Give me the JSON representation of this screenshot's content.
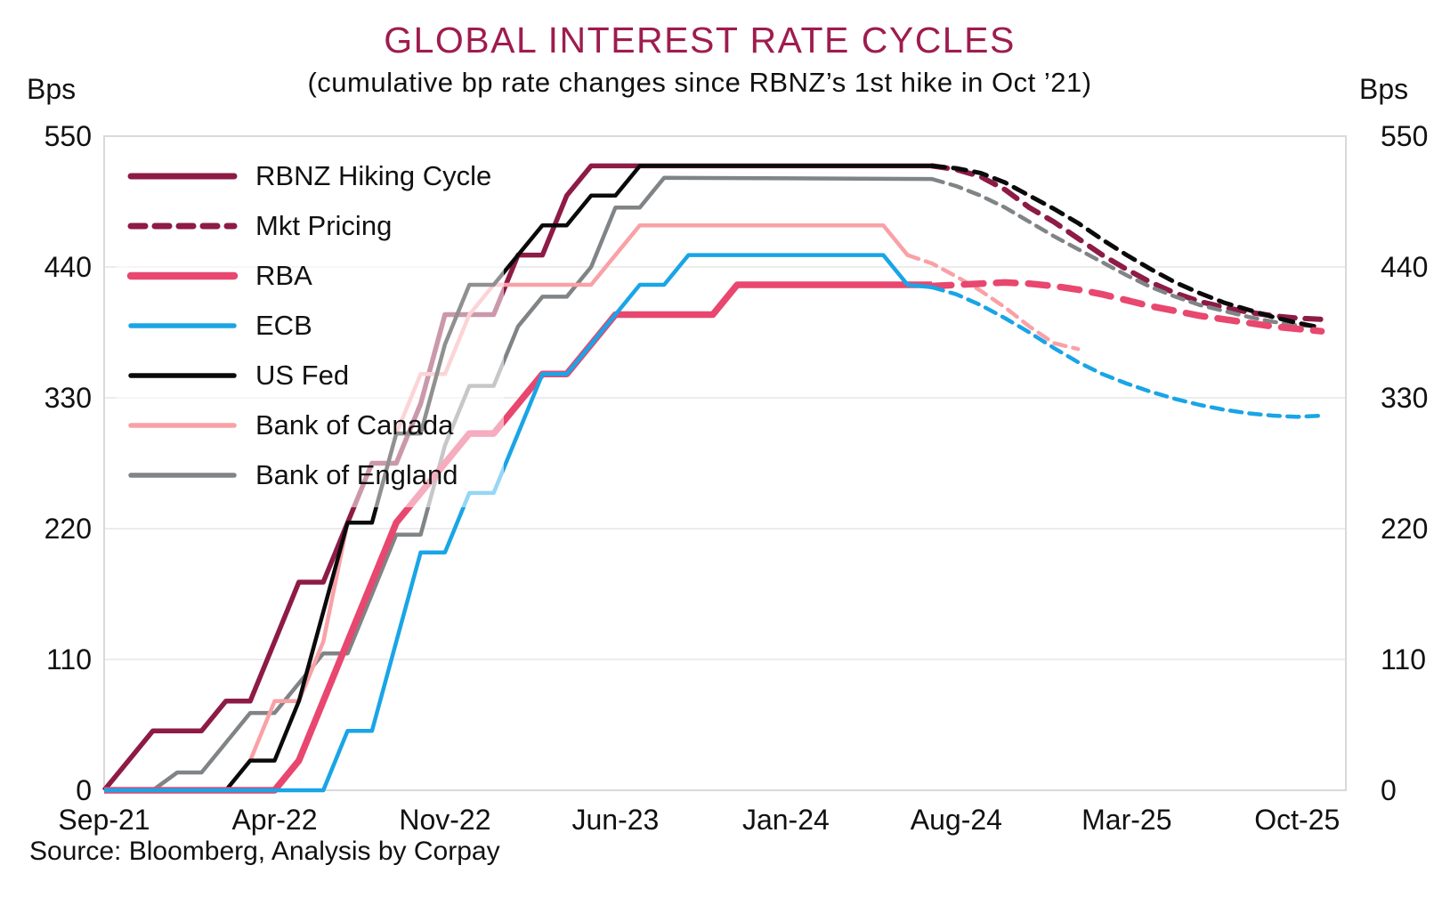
{
  "header": {
    "title": "GLOBAL INTEREST RATE CYCLES",
    "subtitle": "(cumulative bp rate changes since RBNZ’s 1st hike in Oct ’21)",
    "title_color": "#9E1C4E"
  },
  "axes": {
    "left_unit": "Bps",
    "right_unit": "Bps"
  },
  "source_note": "Source: Bloomberg, Analysis by Corpay",
  "colors": {
    "rbnz_maroon": "#8D1B46",
    "rba_pink": "#E8476F",
    "ecb_blue": "#19A5E6",
    "fed_black": "#0A0A0A",
    "boc_salmon": "#F9A1A6",
    "boe_gray": "#808486",
    "gridline": "#ECECEC",
    "frame": "#D9D9D9"
  },
  "legend": {
    "items": [
      {
        "label": "RBNZ Hiking Cycle",
        "color": "#8D1B46",
        "style": "solid",
        "width": 7
      },
      {
        "label": "Mkt Pricing",
        "color": "#8D1B46",
        "style": "dashed",
        "width": 7
      },
      {
        "label": "RBA",
        "color": "#E8476F",
        "style": "solid",
        "width": 8.5
      },
      {
        "label": "ECB",
        "color": "#19A5E6",
        "style": "solid",
        "width": 5.5
      },
      {
        "label": "US Fed",
        "color": "#0A0A0A",
        "style": "solid",
        "width": 5.5
      },
      {
        "label": "Bank of Canada",
        "color": "#F9A1A6",
        "style": "solid",
        "width": 5.5
      },
      {
        "label": "Bank of England",
        "color": "#808486",
        "style": "solid",
        "width": 5.5
      }
    ]
  },
  "chart_data": {
    "type": "line",
    "title": "GLOBAL INTEREST RATE CYCLES",
    "subtitle": "(cumulative bp rate changes since RBNZ’s 1st hike in Oct ’21)",
    "ylabel": "Bps",
    "ylim": [
      0,
      550
    ],
    "y_ticks": [
      0,
      110,
      220,
      330,
      440,
      550
    ],
    "x_unit": "months since Sep-2021",
    "x_range_months": [
      0,
      51
    ],
    "x_ticks": [
      {
        "label": "Sep-21",
        "m": 0
      },
      {
        "label": "Apr-22",
        "m": 7
      },
      {
        "label": "Nov-22",
        "m": 14
      },
      {
        "label": "Jun-23",
        "m": 21
      },
      {
        "label": "Jan-24",
        "m": 28
      },
      {
        "label": "Aug-24",
        "m": 35
      },
      {
        "label": "Mar-25",
        "m": 42
      },
      {
        "label": "Oct-25",
        "m": 49
      }
    ],
    "grid": "horizontal-only",
    "legend_position": "upper-left-inside",
    "series": [
      {
        "id": "rbnz_actual",
        "name": "RBNZ Hiking Cycle",
        "color": "#8D1B46",
        "style": "solid",
        "width": 5.5,
        "points": [
          [
            0,
            0
          ],
          [
            1,
            25
          ],
          [
            2,
            50
          ],
          [
            4,
            50
          ],
          [
            5,
            75
          ],
          [
            6,
            75
          ],
          [
            7,
            125
          ],
          [
            8,
            175
          ],
          [
            9,
            175
          ],
          [
            10,
            225
          ],
          [
            11,
            275
          ],
          [
            12,
            275
          ],
          [
            13,
            325
          ],
          [
            14,
            400
          ],
          [
            16,
            400
          ],
          [
            17,
            450
          ],
          [
            18,
            450
          ],
          [
            19,
            500
          ],
          [
            20,
            525
          ],
          [
            34,
            525
          ]
        ]
      },
      {
        "id": "rbnz_mkt",
        "name": "RBNZ Mkt Pricing",
        "color": "#8D1B46",
        "style": "dashed",
        "width": 6,
        "points": [
          [
            34,
            525
          ],
          [
            35,
            522
          ],
          [
            36,
            516
          ],
          [
            37,
            505
          ],
          [
            38,
            490
          ],
          [
            39,
            478
          ],
          [
            40,
            464
          ],
          [
            41,
            450
          ],
          [
            42,
            438
          ],
          [
            43,
            427
          ],
          [
            44,
            418
          ],
          [
            45,
            411
          ],
          [
            46,
            406
          ],
          [
            47,
            402
          ],
          [
            48,
            399
          ],
          [
            49,
            397
          ],
          [
            50,
            396
          ]
        ]
      },
      {
        "id": "boe_actual",
        "name": "Bank of England",
        "color": "#808486",
        "style": "solid",
        "width": 4.5,
        "points": [
          [
            0,
            0
          ],
          [
            2,
            0
          ],
          [
            3,
            15
          ],
          [
            4,
            15
          ],
          [
            5,
            40
          ],
          [
            6,
            65
          ],
          [
            7,
            65
          ],
          [
            8,
            90
          ],
          [
            9,
            115
          ],
          [
            10,
            115
          ],
          [
            11,
            165
          ],
          [
            12,
            215
          ],
          [
            13,
            215
          ],
          [
            14,
            290
          ],
          [
            15,
            340
          ],
          [
            16,
            340
          ],
          [
            17,
            390
          ],
          [
            18,
            415
          ],
          [
            19,
            415
          ],
          [
            20,
            440
          ],
          [
            21,
            490
          ],
          [
            22,
            490
          ],
          [
            23,
            515
          ],
          [
            34,
            514
          ]
        ]
      },
      {
        "id": "boe_mkt",
        "name": "Bank of England Mkt Pricing",
        "color": "#808486",
        "style": "dashed",
        "width": 4.5,
        "points": [
          [
            34,
            514
          ],
          [
            35,
            508
          ],
          [
            36,
            500
          ],
          [
            37,
            490
          ],
          [
            38,
            478
          ],
          [
            39,
            466
          ],
          [
            40,
            455
          ],
          [
            41,
            444
          ],
          [
            42,
            433
          ],
          [
            43,
            423
          ],
          [
            44,
            415
          ],
          [
            45,
            408
          ],
          [
            46,
            403
          ],
          [
            47,
            398
          ],
          [
            48,
            394
          ],
          [
            49,
            391
          ],
          [
            50,
            390
          ]
        ]
      },
      {
        "id": "boc_actual",
        "name": "Bank of Canada",
        "color": "#F9A1A6",
        "style": "solid",
        "width": 4.5,
        "points": [
          [
            0,
            0
          ],
          [
            5,
            0
          ],
          [
            6,
            25
          ],
          [
            7,
            75
          ],
          [
            8,
            75
          ],
          [
            9,
            125
          ],
          [
            10,
            225
          ],
          [
            11,
            225
          ],
          [
            12,
            300
          ],
          [
            13,
            350
          ],
          [
            14,
            350
          ],
          [
            15,
            400
          ],
          [
            16,
            425
          ],
          [
            20,
            425
          ],
          [
            21,
            450
          ],
          [
            22,
            475
          ],
          [
            32,
            475
          ],
          [
            33,
            450
          ]
        ]
      },
      {
        "id": "boc_mkt",
        "name": "Bank of Canada Mkt Pricing",
        "color": "#F9A1A6",
        "style": "dashed",
        "width": 4.5,
        "points": [
          [
            33,
            450
          ],
          [
            34,
            443
          ],
          [
            35,
            432
          ],
          [
            36,
            420
          ],
          [
            37,
            406
          ],
          [
            38,
            390
          ],
          [
            39,
            376
          ],
          [
            40,
            371
          ]
        ]
      },
      {
        "id": "fed_actual",
        "name": "US Fed",
        "color": "#0A0A0A",
        "style": "solid",
        "width": 4.5,
        "points": [
          [
            0,
            0
          ],
          [
            5,
            0
          ],
          [
            6,
            25
          ],
          [
            7,
            25
          ],
          [
            8,
            75
          ],
          [
            9,
            150
          ],
          [
            10,
            225
          ],
          [
            11,
            225
          ],
          [
            12,
            300
          ],
          [
            13,
            300
          ],
          [
            14,
            375
          ],
          [
            15,
            425
          ],
          [
            16,
            425
          ],
          [
            17,
            450
          ],
          [
            18,
            475
          ],
          [
            19,
            475
          ],
          [
            20,
            500
          ],
          [
            21,
            500
          ],
          [
            22,
            525
          ],
          [
            34,
            525
          ]
        ]
      },
      {
        "id": "fed_mkt",
        "name": "US Fed Mkt Pricing",
        "color": "#0A0A0A",
        "style": "dashed",
        "width": 5,
        "points": [
          [
            34,
            525
          ],
          [
            35,
            523
          ],
          [
            36,
            519
          ],
          [
            37,
            511
          ],
          [
            38,
            500
          ],
          [
            39,
            489
          ],
          [
            40,
            477
          ],
          [
            41,
            463
          ],
          [
            42,
            450
          ],
          [
            43,
            438
          ],
          [
            44,
            427
          ],
          [
            45,
            418
          ],
          [
            46,
            410
          ],
          [
            47,
            404
          ],
          [
            48,
            398
          ],
          [
            49,
            393
          ],
          [
            50,
            389
          ]
        ]
      },
      {
        "id": "rba_actual",
        "name": "RBA",
        "color": "#E8476F",
        "style": "solid",
        "width": 7.5,
        "points": [
          [
            0,
            0
          ],
          [
            7,
            0
          ],
          [
            8,
            25
          ],
          [
            9,
            75
          ],
          [
            10,
            125
          ],
          [
            11,
            175
          ],
          [
            12,
            225
          ],
          [
            13,
            250
          ],
          [
            14,
            275
          ],
          [
            15,
            300
          ],
          [
            16,
            300
          ],
          [
            17,
            325
          ],
          [
            18,
            350
          ],
          [
            19,
            350
          ],
          [
            20,
            375
          ],
          [
            21,
            400
          ],
          [
            25,
            400
          ],
          [
            26,
            425
          ],
          [
            34,
            425
          ]
        ]
      },
      {
        "id": "rba_mkt",
        "name": "RBA Mkt Pricing",
        "color": "#E8476F",
        "style": "dashed",
        "width": 7.5,
        "points": [
          [
            34,
            424
          ],
          [
            36,
            426
          ],
          [
            37,
            427
          ],
          [
            38,
            426
          ],
          [
            39,
            424
          ],
          [
            40,
            421
          ],
          [
            41,
            417
          ],
          [
            42,
            412
          ],
          [
            43,
            407
          ],
          [
            44,
            403
          ],
          [
            45,
            399
          ],
          [
            46,
            396
          ],
          [
            47,
            393
          ],
          [
            48,
            390
          ],
          [
            49,
            388
          ],
          [
            50,
            386
          ]
        ]
      },
      {
        "id": "ecb_actual",
        "name": "ECB",
        "color": "#19A5E6",
        "style": "solid",
        "width": 4.5,
        "points": [
          [
            0,
            0
          ],
          [
            9,
            0
          ],
          [
            10,
            50
          ],
          [
            11,
            50
          ],
          [
            12,
            125
          ],
          [
            13,
            200
          ],
          [
            14,
            200
          ],
          [
            15,
            250
          ],
          [
            16,
            250
          ],
          [
            17,
            300
          ],
          [
            18,
            350
          ],
          [
            19,
            350
          ],
          [
            20,
            375
          ],
          [
            21,
            400
          ],
          [
            22,
            425
          ],
          [
            23,
            425
          ],
          [
            24,
            450
          ],
          [
            32,
            450
          ],
          [
            33,
            425
          ],
          [
            34,
            423
          ]
        ]
      },
      {
        "id": "ecb_mkt",
        "name": "ECB Mkt Pricing",
        "color": "#19A5E6",
        "style": "dashed",
        "width": 4.5,
        "points": [
          [
            34,
            423
          ],
          [
            35,
            417
          ],
          [
            36,
            408
          ],
          [
            37,
            397
          ],
          [
            38,
            385
          ],
          [
            39,
            372
          ],
          [
            40,
            360
          ],
          [
            41,
            350
          ],
          [
            42,
            342
          ],
          [
            43,
            335
          ],
          [
            44,
            329
          ],
          [
            45,
            324
          ],
          [
            46,
            320
          ],
          [
            47,
            317
          ],
          [
            48,
            315
          ],
          [
            49,
            314
          ],
          [
            50,
            315
          ]
        ]
      }
    ]
  }
}
